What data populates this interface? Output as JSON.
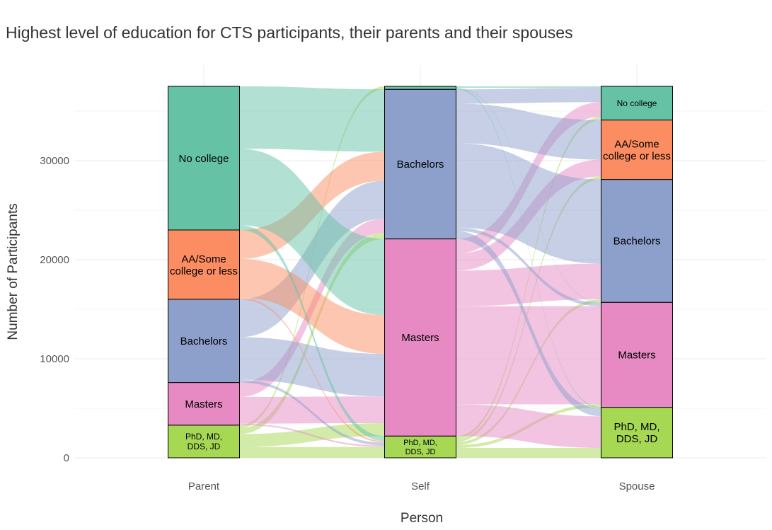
{
  "chart_data": {
    "type": "alluvial",
    "title": "Highest level of education for CTS participants, their parents and their spouses",
    "xlabel": "Person",
    "ylabel": "Number of Participants",
    "ylim": [
      0,
      37500
    ],
    "y_ticks": [
      0,
      10000,
      20000,
      30000
    ],
    "y_tick_labels": [
      "0",
      "10000",
      "20000",
      "30000"
    ],
    "axes": [
      "Parent",
      "Self",
      "Spouse"
    ],
    "categories": [
      "PhD, MD, DDS, JD",
      "Masters",
      "Bachelors",
      "AA/Some college or less",
      "No college"
    ],
    "category_labels": [
      "PhD, MD,\nDDS, JD",
      "Masters",
      "Bachelors",
      "AA/Some\ncollege or less",
      "No college"
    ],
    "colors": {
      "PhD, MD, DDS, JD": "#a6d854",
      "Masters": "#e78ac3",
      "Bachelors": "#8da0cb",
      "AA/Some college or less": "#fc8d62",
      "No college": "#66c2a5"
    },
    "strata": {
      "Parent": [
        3300,
        4300,
        8400,
        7000,
        14500
      ],
      "Self": [
        2200,
        19900,
        15100,
        0,
        300
      ],
      "Spouse": [
        5100,
        10600,
        12400,
        6000,
        3400
      ]
    },
    "flows_parent_to_self": [
      [
        1100,
        1300,
        600,
        0,
        300
      ],
      [
        150,
        2700,
        1450,
        0,
        0
      ],
      [
        280,
        4300,
        3820,
        0,
        0
      ],
      [
        170,
        3900,
        2930,
        0,
        0
      ],
      [
        500,
        7700,
        6300,
        0,
        0
      ]
    ],
    "flows_self_to_spouse": [
      [
        1000,
        300,
        300,
        300,
        300
      ],
      [
        3200,
        9900,
        3600,
        1700,
        1500
      ],
      [
        800,
        350,
        8500,
        4000,
        1450
      ],
      [
        0,
        0,
        0,
        0,
        0
      ],
      [
        100,
        50,
        0,
        0,
        150
      ]
    ],
    "legend": "none",
    "grid": true
  }
}
